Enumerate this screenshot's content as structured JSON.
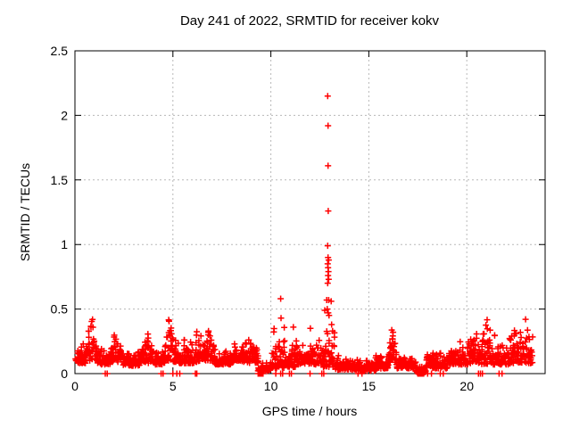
{
  "chart_data": {
    "type": "scatter",
    "title": "Day 241 of 2022, SRMTID for receiver kokv",
    "xlabel": "GPS time / hours",
    "ylabel": "SRMTID / TECUs",
    "xlim": [
      0,
      24
    ],
    "ylim": [
      0,
      2.5
    ],
    "xticks": [
      0,
      5,
      10,
      15,
      20
    ],
    "yticks": [
      0,
      0.5,
      1,
      1.5,
      2,
      2.5
    ],
    "grid": true,
    "legend": "none",
    "marker": {
      "shape": "plus",
      "color": "#ff0000",
      "size": 7
    },
    "grid_color": "#b8b8b8",
    "axis_color": "#000000",
    "series_name": "SRMTID",
    "band_segments": [
      [
        0.05,
        0.55,
        0.08,
        0.26,
        14,
        0
      ],
      [
        0.55,
        1.15,
        0.1,
        0.47,
        16,
        1
      ],
      [
        1.15,
        1.8,
        0.07,
        0.22,
        16,
        0
      ],
      [
        1.8,
        2.45,
        0.09,
        0.37,
        16,
        1
      ],
      [
        2.45,
        3.3,
        0.06,
        0.2,
        20,
        0
      ],
      [
        3.3,
        4.1,
        0.08,
        0.31,
        19,
        1
      ],
      [
        4.1,
        4.6,
        0.07,
        0.2,
        12,
        0
      ],
      [
        4.6,
        5.05,
        0.1,
        0.48,
        12,
        1
      ],
      [
        5.05,
        6.1,
        0.08,
        0.27,
        24,
        0
      ],
      [
        6.1,
        6.6,
        0.09,
        0.33,
        12,
        0
      ],
      [
        6.6,
        7.15,
        0.1,
        0.4,
        13,
        1
      ],
      [
        7.15,
        8.1,
        0.07,
        0.2,
        22,
        0
      ],
      [
        8.1,
        8.7,
        0.09,
        0.28,
        14,
        0
      ],
      [
        8.7,
        9.35,
        0.08,
        0.35,
        15,
        0
      ],
      [
        9.35,
        10.0,
        0.02,
        0.1,
        15,
        0
      ],
      [
        10.0,
        10.7,
        0.04,
        0.4,
        16,
        0
      ],
      [
        10.7,
        11.3,
        0.05,
        0.3,
        14,
        0
      ],
      [
        11.3,
        12.55,
        0.07,
        0.3,
        28,
        0
      ],
      [
        12.55,
        13.25,
        0.05,
        0.4,
        16,
        0
      ],
      [
        13.25,
        14.2,
        0.03,
        0.16,
        22,
        0
      ],
      [
        14.2,
        15.35,
        0.02,
        0.12,
        26,
        0
      ],
      [
        15.35,
        16.0,
        0.04,
        0.15,
        15,
        0
      ],
      [
        16.0,
        16.4,
        0.08,
        0.42,
        10,
        1
      ],
      [
        16.4,
        17.4,
        0.04,
        0.17,
        22,
        0
      ],
      [
        17.4,
        17.9,
        0.01,
        0.08,
        12,
        0
      ],
      [
        17.9,
        19.0,
        0.04,
        0.18,
        25,
        0
      ],
      [
        19.0,
        20.05,
        0.07,
        0.26,
        24,
        0
      ],
      [
        20.05,
        20.7,
        0.08,
        0.45,
        16,
        0
      ],
      [
        20.7,
        21.35,
        0.07,
        0.47,
        15,
        1
      ],
      [
        21.35,
        22.2,
        0.07,
        0.38,
        19,
        0
      ],
      [
        22.2,
        23.35,
        0.08,
        0.47,
        26,
        0
      ]
    ],
    "outliers": [
      [
        10.5,
        0.58
      ],
      [
        10.52,
        0.43
      ],
      [
        11.15,
        0.36
      ],
      [
        12.02,
        0.35
      ],
      [
        12.75,
        0.49
      ],
      [
        12.85,
        0.57
      ],
      [
        12.88,
        0.5
      ],
      [
        12.9,
        2.15
      ],
      [
        12.92,
        1.92
      ],
      [
        12.92,
        1.61
      ],
      [
        12.93,
        1.26
      ],
      [
        12.9,
        0.99
      ],
      [
        12.92,
        0.9
      ],
      [
        12.95,
        0.88
      ],
      [
        12.9,
        0.85
      ],
      [
        12.92,
        0.82
      ],
      [
        12.94,
        0.79
      ],
      [
        12.92,
        0.76
      ],
      [
        12.95,
        0.73
      ],
      [
        12.9,
        0.7
      ],
      [
        12.95,
        0.57
      ],
      [
        13.08,
        0.56
      ],
      [
        12.93,
        0.47
      ],
      [
        12.97,
        0.45
      ],
      [
        13.1,
        0.38
      ],
      [
        13.15,
        0.33
      ]
    ],
    "zero_points": [
      1.55,
      1.65,
      4.4,
      4.5,
      5.0,
      5.2,
      5.35,
      6.15,
      6.22,
      9.35,
      9.4,
      9.45,
      9.5,
      9.55,
      9.6,
      10.25,
      10.5,
      10.6,
      10.95,
      11.05,
      12.0,
      12.6,
      12.7,
      14.45,
      14.65,
      17.5,
      17.55,
      17.6,
      17.65,
      17.7,
      17.75,
      17.8,
      18.0,
      18.2,
      18.65,
      18.8,
      20.6,
      20.7,
      20.8,
      21.65,
      21.8
    ]
  }
}
